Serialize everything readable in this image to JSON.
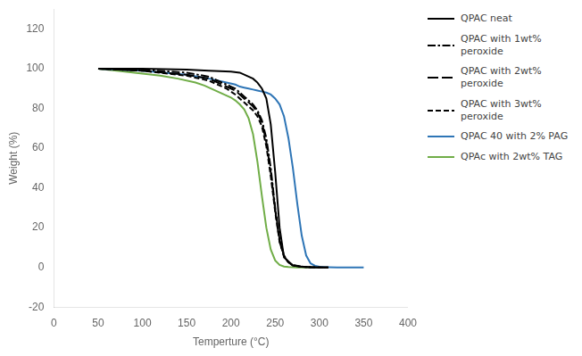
{
  "chart_data": {
    "type": "line",
    "xlabel": "Temperture (°C)",
    "ylabel": "Weight (%)",
    "xlim": [
      0,
      400
    ],
    "ylim": [
      -20,
      130
    ],
    "xticks": [
      0,
      50,
      100,
      150,
      200,
      250,
      300,
      350,
      400
    ],
    "yticks": [
      -20,
      0,
      20,
      40,
      60,
      80,
      100,
      120
    ],
    "grid": false,
    "legend": "right",
    "series": [
      {
        "name": "QPAC neat",
        "color": "#000000",
        "line_style": "solid",
        "x": [
          50,
          100,
          150,
          175,
          200,
          210,
          215,
          220,
          225,
          230,
          235,
          240,
          245,
          250,
          255,
          260,
          270,
          280,
          290,
          300,
          310
        ],
        "values": [
          100,
          100,
          99.5,
          99,
          98.5,
          98,
          97,
          96,
          95,
          93,
          90,
          85,
          72,
          48,
          20,
          5,
          1,
          0.3,
          0.1,
          0,
          0
        ]
      },
      {
        "name": "QPAC with 1wt%\nperoxide",
        "color": "#000000",
        "line_style": "dashdot",
        "x": [
          50,
          100,
          150,
          175,
          190,
          200,
          205,
          210,
          215,
          220,
          225,
          230,
          235,
          240,
          245,
          250,
          255,
          260,
          265,
          270,
          280,
          290,
          300,
          310
        ],
        "values": [
          100,
          99.5,
          98,
          96,
          93,
          91,
          90,
          88,
          86,
          84,
          82,
          79,
          74,
          65,
          50,
          30,
          14,
          6,
          2.5,
          1,
          0.3,
          0.1,
          0,
          0
        ]
      },
      {
        "name": "QPAC with 2wt%\nperoxide",
        "color": "#000000",
        "line_style": "long_dashed",
        "x": [
          50,
          100,
          150,
          175,
          190,
          200,
          205,
          210,
          215,
          220,
          225,
          230,
          235,
          240,
          245,
          250,
          255,
          260,
          265,
          270,
          280,
          290,
          300,
          310
        ],
        "values": [
          100,
          99,
          97,
          95,
          92,
          90,
          89,
          87,
          85,
          83,
          81,
          78,
          73,
          63,
          48,
          29,
          13,
          5.5,
          2.5,
          1,
          0.3,
          0.1,
          0,
          0
        ]
      },
      {
        "name": "QPAC with 3wt%\nperoxide",
        "color": "#000000",
        "line_style": "dashed",
        "x": [
          50,
          100,
          150,
          175,
          185,
          195,
          200,
          205,
          210,
          215,
          220,
          225,
          230,
          235,
          240,
          245,
          250,
          255,
          260,
          265,
          270,
          280,
          285,
          290,
          295,
          300,
          310
        ],
        "values": [
          100,
          99,
          96.5,
          94,
          92,
          90,
          88.5,
          87,
          85,
          83,
          81,
          79,
          76,
          71,
          61,
          46,
          28,
          13,
          5.5,
          2.5,
          1.2,
          0.4,
          0.2,
          0.1,
          0,
          0,
          0
        ]
      },
      {
        "name": "QPAC 40 with 2% PAG",
        "color": "#2E75B6",
        "line_style": "solid",
        "x": [
          50,
          100,
          150,
          175,
          195,
          205,
          210,
          215,
          220,
          225,
          230,
          235,
          240,
          245,
          250,
          255,
          260,
          265,
          270,
          275,
          280,
          285,
          290,
          295,
          300,
          305,
          310,
          320,
          330,
          340,
          350
        ],
        "values": [
          100,
          99,
          97,
          95,
          93,
          92,
          91,
          90.5,
          90,
          89.5,
          89,
          88.5,
          88,
          87,
          85,
          82,
          76,
          65,
          50,
          32,
          16,
          6,
          2,
          0.8,
          0.3,
          0.15,
          0.1,
          0,
          0,
          0,
          0
        ]
      },
      {
        "name": "QPAc with 2wt% TAG",
        "color": "#70AD47",
        "line_style": "solid",
        "x": [
          50,
          80,
          100,
          120,
          140,
          160,
          170,
          175,
          180,
          185,
          190,
          195,
          200,
          205,
          210,
          215,
          220,
          225,
          230,
          235,
          240,
          245,
          250,
          255,
          260,
          265,
          270,
          275,
          280,
          285,
          290,
          300
        ],
        "values": [
          100,
          98.5,
          97.5,
          96.5,
          95,
          93,
          91.5,
          90.5,
          89.5,
          88.5,
          87.5,
          86.5,
          85.5,
          84,
          82,
          79.5,
          75,
          67,
          53,
          36,
          20,
          9,
          3.5,
          1.2,
          0.4,
          0.15,
          0.05,
          0,
          0,
          0,
          0,
          0
        ]
      }
    ]
  }
}
